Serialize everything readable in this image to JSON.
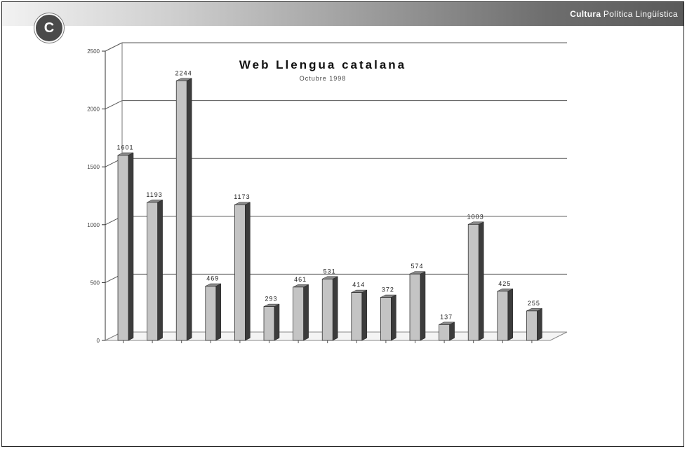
{
  "header": {
    "badge": "C",
    "title_bold": "Cultura",
    "title_rest": " Política Lingüística"
  },
  "chart_data": {
    "type": "bar",
    "title": "Web Llengua catalana",
    "subtitle": "Octubre 1998",
    "ylim": [
      0,
      2500
    ],
    "yticks": [
      0,
      500,
      1000,
      1500,
      2000,
      2500
    ],
    "ytick_labels": [
      "0",
      "500",
      "1000",
      "1500",
      "2000",
      "2500"
    ],
    "grid": true,
    "categories": [
      "",
      "",
      "",
      "",
      "",
      "",
      "",
      "",
      "",
      "",
      "",
      "",
      "",
      "",
      ""
    ],
    "values": [
      1601,
      1193,
      2244,
      469,
      1173,
      293,
      461,
      531,
      414,
      372,
      574,
      137,
      1003,
      425,
      255
    ],
    "data_labels": [
      "1601",
      "1193",
      "2244",
      "469",
      "1173",
      "293",
      "461",
      "531",
      "414",
      "372",
      "574",
      "137",
      "1003",
      "425",
      "255"
    ],
    "colors": {
      "bar_face": "#c4c4c4",
      "bar_side": "#3c3c3c",
      "bar_top": "#8a8a8a",
      "grid": "#555555"
    }
  }
}
